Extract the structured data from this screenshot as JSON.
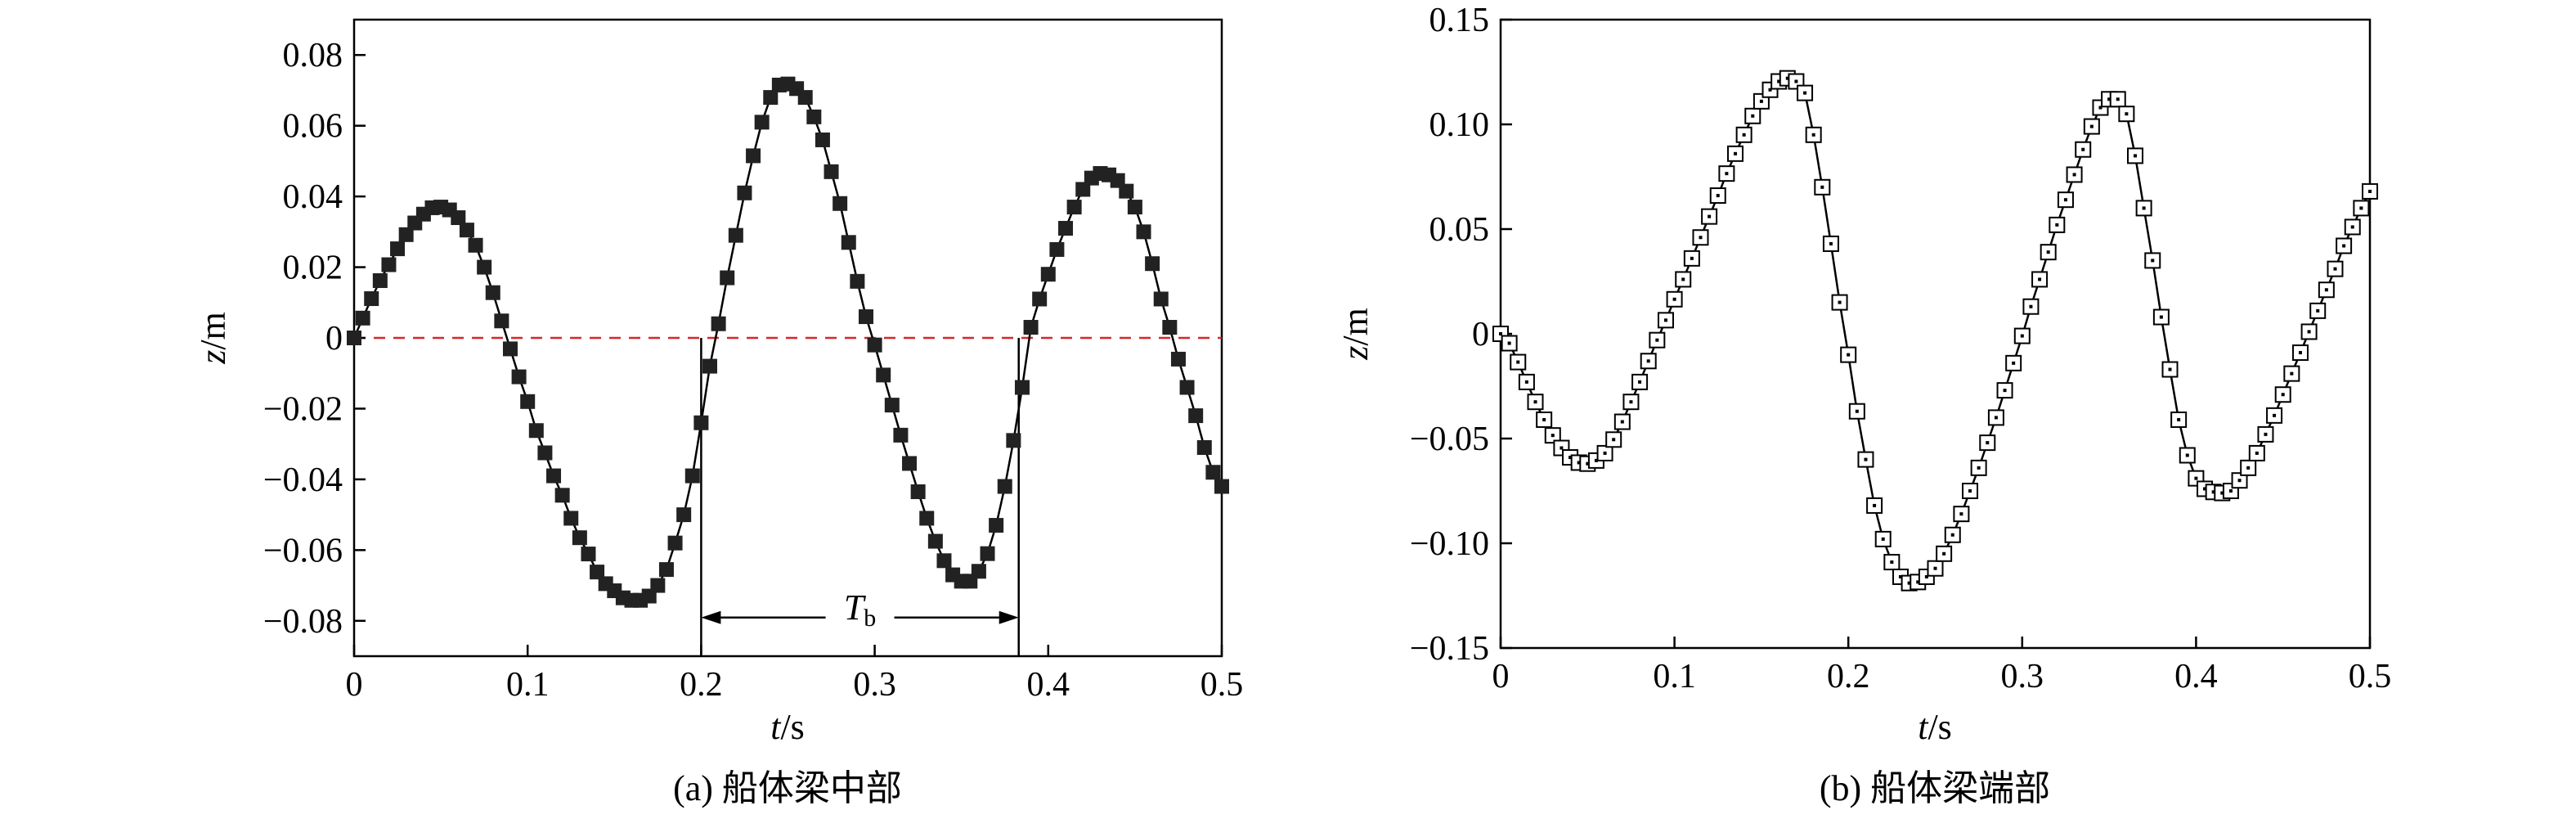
{
  "chart_data": [
    {
      "id": "a",
      "type": "scatter",
      "caption": "(a) 船体梁中部",
      "xlabel_var": "t",
      "xlabel_unit": "/s",
      "ylabel_var": "z",
      "ylabel_unit": "/m",
      "xlim": [
        0,
        0.5
      ],
      "ylim": [
        -0.09,
        0.09
      ],
      "xticks": [
        0,
        0.1,
        0.2,
        0.3,
        0.4,
        0.5
      ],
      "xtick_labels": [
        "0",
        "0.1",
        "0.2",
        "0.3",
        "0.4",
        "0.5"
      ],
      "yticks": [
        0.08,
        0.06,
        0.04,
        0.02,
        0,
        -0.02,
        -0.04,
        -0.06,
        -0.08
      ],
      "ytick_labels": [
        "0.08",
        "0.06",
        "0.04",
        "0.02",
        "0",
        "−0.02",
        "−0.04",
        "−0.06",
        "−0.08"
      ],
      "marker": "filled-square",
      "zero_line": {
        "y": 0,
        "color": "#d62728",
        "style": "dashed"
      },
      "period_annotation": {
        "label": "T",
        "subscript": "b",
        "x_start": 0.2,
        "x_end": 0.383,
        "y": -0.08
      },
      "series": [
        {
          "x": [
            0,
            0.005,
            0.01,
            0.015,
            0.02,
            0.025,
            0.03,
            0.035,
            0.04,
            0.045,
            0.05,
            0.055,
            0.06,
            0.065,
            0.07,
            0.075,
            0.08,
            0.085,
            0.09,
            0.095,
            0.1,
            0.105,
            0.11,
            0.115,
            0.12,
            0.125,
            0.13,
            0.135,
            0.14,
            0.145,
            0.15,
            0.155,
            0.16,
            0.165,
            0.17,
            0.175,
            0.18,
            0.185,
            0.19,
            0.195,
            0.2,
            0.205,
            0.21,
            0.215,
            0.22,
            0.225,
            0.23,
            0.235,
            0.24,
            0.245,
            0.25,
            0.255,
            0.26,
            0.265,
            0.27,
            0.275,
            0.28,
            0.285,
            0.29,
            0.295,
            0.3,
            0.305,
            0.31,
            0.315,
            0.32,
            0.325,
            0.33,
            0.335,
            0.34,
            0.345,
            0.35,
            0.355,
            0.36,
            0.365,
            0.37,
            0.375,
            0.38,
            0.385,
            0.39,
            0.395,
            0.4,
            0.405,
            0.41,
            0.415,
            0.42,
            0.425,
            0.43,
            0.435,
            0.44,
            0.445,
            0.45,
            0.455,
            0.46,
            0.465,
            0.47,
            0.475,
            0.48,
            0.485,
            0.49,
            0.495,
            0.5
          ],
          "y": [
            0.0,
            0.0056,
            0.0111,
            0.0162,
            0.0207,
            0.0252,
            0.0292,
            0.0325,
            0.035,
            0.0368,
            0.037,
            0.0362,
            0.034,
            0.0305,
            0.0262,
            0.02,
            0.0128,
            0.0048,
            -0.0031,
            -0.011,
            -0.018,
            -0.0262,
            -0.0325,
            -0.039,
            -0.0445,
            -0.051,
            -0.0565,
            -0.0611,
            -0.0662,
            -0.0695,
            -0.0715,
            -0.0735,
            -0.0742,
            -0.0742,
            -0.073,
            -0.07,
            -0.0655,
            -0.058,
            -0.05,
            -0.039,
            -0.024,
            -0.008,
            0.004,
            0.017,
            0.029,
            0.041,
            0.0515,
            0.061,
            0.068,
            0.0715,
            0.0718,
            0.0705,
            0.068,
            0.0625,
            0.056,
            0.047,
            0.038,
            0.027,
            0.016,
            0.006,
            -0.002,
            -0.0105,
            -0.019,
            -0.0275,
            -0.0355,
            -0.0435,
            -0.051,
            -0.0575,
            -0.063,
            -0.067,
            -0.0688,
            -0.0688,
            -0.066,
            -0.061,
            -0.053,
            -0.042,
            -0.029,
            -0.014,
            0.003,
            0.011,
            0.018,
            0.025,
            0.031,
            0.037,
            0.042,
            0.0452,
            0.0465,
            0.0461,
            0.0445,
            0.0415,
            0.037,
            0.03,
            0.021,
            0.011,
            0.003,
            -0.006,
            -0.014,
            -0.022,
            -0.031,
            -0.038,
            -0.042
          ]
        }
      ]
    },
    {
      "id": "b",
      "type": "scatter",
      "caption": "(b) 船体梁端部",
      "xlabel_var": "t",
      "xlabel_unit": "/s",
      "ylabel_var": "z",
      "ylabel_unit": "/m",
      "xlim": [
        0,
        0.5
      ],
      "ylim": [
        -0.15,
        0.15
      ],
      "xticks": [
        0,
        0.1,
        0.2,
        0.3,
        0.4,
        0.5
      ],
      "xtick_labels": [
        "0",
        "0.1",
        "0.2",
        "0.3",
        "0.4",
        "0.5"
      ],
      "yticks": [
        0.15,
        0.1,
        0.05,
        0,
        -0.05,
        -0.1,
        -0.15
      ],
      "ytick_labels": [
        "0.15",
        "0.10",
        "0.05",
        "0",
        "−0.05",
        "−0.10",
        "−0.15"
      ],
      "marker": "hollow-square-dot",
      "series": [
        {
          "x": [
            0,
            0.005,
            0.01,
            0.015,
            0.02,
            0.025,
            0.03,
            0.035,
            0.04,
            0.045,
            0.05,
            0.055,
            0.06,
            0.065,
            0.07,
            0.075,
            0.08,
            0.085,
            0.09,
            0.095,
            0.1,
            0.105,
            0.11,
            0.115,
            0.12,
            0.125,
            0.13,
            0.135,
            0.14,
            0.145,
            0.15,
            0.155,
            0.16,
            0.165,
            0.17,
            0.175,
            0.18,
            0.185,
            0.19,
            0.195,
            0.2,
            0.205,
            0.21,
            0.215,
            0.22,
            0.225,
            0.23,
            0.235,
            0.24,
            0.245,
            0.25,
            0.255,
            0.26,
            0.265,
            0.27,
            0.275,
            0.28,
            0.285,
            0.29,
            0.295,
            0.3,
            0.305,
            0.31,
            0.315,
            0.32,
            0.325,
            0.33,
            0.335,
            0.34,
            0.345,
            0.35,
            0.355,
            0.36,
            0.365,
            0.37,
            0.375,
            0.38,
            0.385,
            0.39,
            0.395,
            0.4,
            0.405,
            0.41,
            0.415,
            0.42,
            0.425,
            0.43,
            0.435,
            0.44,
            0.445,
            0.45,
            0.455,
            0.46,
            0.465,
            0.47,
            0.475,
            0.48,
            0.485,
            0.49,
            0.495,
            0.5
          ],
          "y": [
            0.0,
            -0.0045,
            -0.0135,
            -0.023,
            -0.0325,
            -0.041,
            -0.0485,
            -0.0545,
            -0.059,
            -0.0615,
            -0.062,
            -0.0605,
            -0.057,
            -0.0505,
            -0.042,
            -0.0325,
            -0.023,
            -0.013,
            -0.003,
            0.0065,
            0.0165,
            0.026,
            0.036,
            0.046,
            0.056,
            0.066,
            0.0765,
            0.086,
            0.095,
            0.104,
            0.111,
            0.1165,
            0.1205,
            0.122,
            0.1205,
            0.115,
            0.095,
            0.07,
            0.043,
            0.015,
            -0.01,
            -0.037,
            -0.06,
            -0.082,
            -0.098,
            -0.109,
            -0.116,
            -0.119,
            -0.1185,
            -0.116,
            -0.112,
            -0.105,
            -0.096,
            -0.086,
            -0.075,
            -0.064,
            -0.052,
            -0.04,
            -0.027,
            -0.014,
            -0.001,
            0.013,
            0.026,
            0.039,
            0.052,
            0.064,
            0.076,
            0.088,
            0.099,
            0.108,
            0.112,
            0.112,
            0.105,
            0.085,
            0.06,
            0.035,
            0.008,
            -0.017,
            -0.041,
            -0.058,
            -0.069,
            -0.074,
            -0.0755,
            -0.076,
            -0.075,
            -0.07,
            -0.064,
            -0.057,
            -0.048,
            -0.039,
            -0.029,
            -0.019,
            -0.009,
            0.001,
            0.011,
            0.021,
            0.031,
            0.042,
            0.051,
            0.06,
            0.068
          ]
        }
      ]
    }
  ]
}
